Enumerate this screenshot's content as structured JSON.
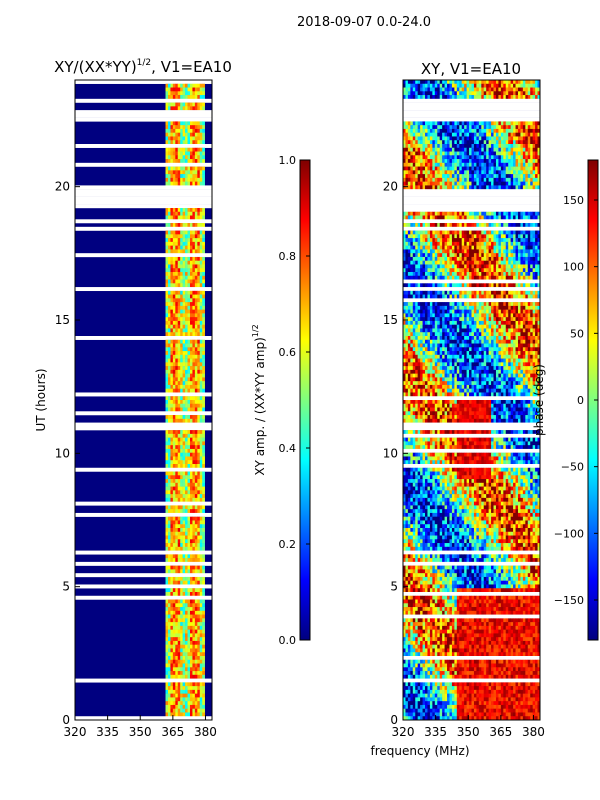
{
  "figure_title": "2018-09-07 0.0-24.0",
  "shared_xlabel": "frequency (MHz)",
  "colors": {
    "background": "#000080",
    "jet": [
      "#00007f",
      "#0000ff",
      "#007fff",
      "#00ffff",
      "#7fff7f",
      "#ffff00",
      "#ff7f00",
      "#ff0000",
      "#7f0000"
    ]
  },
  "chart_data": [
    {
      "type": "heatmap",
      "title": "XY/(XX*YY)",
      "title_sup": "1/2",
      "title_suffix": ", V1=EA10",
      "xlabel": "",
      "ylabel": "UT (hours)",
      "xlim": [
        320,
        383
      ],
      "ylim": [
        0,
        24
      ],
      "xticks": [
        "320",
        "335",
        "350",
        "365",
        "380"
      ],
      "xtick_values": [
        320,
        335,
        350,
        365,
        380
      ],
      "yticks": [
        "0",
        "5",
        "10",
        "15",
        "20"
      ],
      "ytick_values": [
        0,
        5,
        10,
        15,
        20
      ],
      "colorbar": {
        "label": "XY amp. / (XX*YY amp)",
        "label_sup": "1/2",
        "range": [
          0.0,
          1.0
        ],
        "ticks": [
          "0.0",
          "0.2",
          "0.4",
          "0.6",
          "0.8",
          "1.0"
        ],
        "tick_values": [
          0.0,
          0.2,
          0.4,
          0.6,
          0.8,
          1.0
        ]
      },
      "bright_band_mhz": [
        362,
        380
      ],
      "blank_time_ranges_hours": [
        [
          23.2,
          23.3
        ],
        [
          22.5,
          22.8
        ],
        [
          19.2,
          19.9
        ],
        [
          16.1,
          16.2
        ],
        [
          10.9,
          11.1
        ],
        [
          6.2,
          6.4
        ],
        [
          5.8,
          5.9
        ],
        [
          1.5,
          1.6
        ]
      ]
    },
    {
      "type": "heatmap",
      "title": "XY, V1=EA10",
      "xlabel": "frequency (MHz)",
      "ylabel": "",
      "xlim": [
        320,
        383
      ],
      "ylim": [
        0,
        24
      ],
      "xticks": [
        "320",
        "335",
        "350",
        "365",
        "380"
      ],
      "xtick_values": [
        320,
        335,
        350,
        365,
        380
      ],
      "yticks": [
        "0",
        "5",
        "10",
        "15",
        "20"
      ],
      "ytick_values": [
        0,
        5,
        10,
        15,
        20
      ],
      "colorbar": {
        "label": "phase (deg)",
        "range": [
          -180,
          180
        ],
        "ticks": [
          "−150",
          "−100",
          "−50",
          "0",
          "50",
          "100",
          "150"
        ],
        "tick_values": [
          -150,
          -100,
          -50,
          0,
          50,
          100,
          150
        ]
      },
      "blank_time_ranges_hours": [
        [
          23.2,
          23.3
        ],
        [
          22.5,
          22.8
        ],
        [
          19.2,
          19.9
        ],
        [
          16.1,
          16.2
        ],
        [
          10.9,
          11.1
        ],
        [
          6.2,
          6.4
        ],
        [
          5.8,
          5.9
        ],
        [
          1.5,
          1.6
        ]
      ]
    }
  ]
}
